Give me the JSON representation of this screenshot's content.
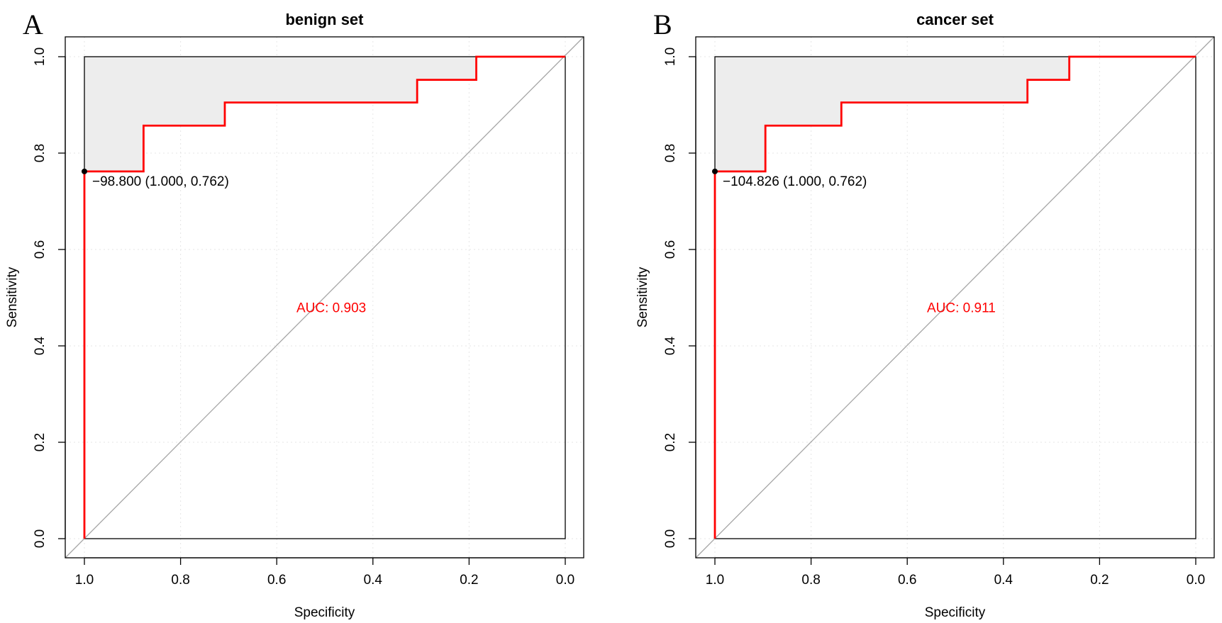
{
  "chart_data": [
    {
      "type": "line",
      "panel_label": "A",
      "title": "benign set",
      "xlabel": "Specificity",
      "ylabel": "Sensitivity",
      "xlim": [
        1.0,
        0.0
      ],
      "ylim": [
        0.0,
        1.0
      ],
      "x_reversed": true,
      "xticks": [
        "1.0",
        "0.8",
        "0.6",
        "0.4",
        "0.2",
        "0.0"
      ],
      "yticks": [
        "0.0",
        "0.2",
        "0.4",
        "0.6",
        "0.8",
        "1.0"
      ],
      "grid": true,
      "series": [
        {
          "color": "#ff0000",
          "x": [
            1.0,
            1.0,
            0.877,
            0.877,
            0.708,
            0.708,
            0.308,
            0.308,
            0.185,
            0.185,
            0.0
          ],
          "y": [
            0.0,
            0.762,
            0.762,
            0.857,
            0.857,
            0.905,
            0.905,
            0.952,
            0.952,
            1.0,
            1.0
          ]
        }
      ],
      "threshold": {
        "label": "−98.800 (1.000, 0.762)",
        "x": 1.0,
        "y": 0.762
      },
      "auc_label": "AUC: 0.903",
      "auc_label_pos": [
        0.5,
        0.48
      ]
    },
    {
      "type": "line",
      "panel_label": "B",
      "title": "cancer set",
      "xlabel": "Specificity",
      "ylabel": "Sensitivity",
      "xlim": [
        1.0,
        0.0
      ],
      "ylim": [
        0.0,
        1.0
      ],
      "x_reversed": true,
      "xticks": [
        "1.0",
        "0.8",
        "0.6",
        "0.4",
        "0.2",
        "0.0"
      ],
      "yticks": [
        "0.0",
        "0.2",
        "0.4",
        "0.6",
        "0.8",
        "1.0"
      ],
      "grid": true,
      "series": [
        {
          "color": "#ff0000",
          "x": [
            1.0,
            1.0,
            0.895,
            0.895,
            0.737,
            0.737,
            0.35,
            0.35,
            0.263,
            0.263,
            0.0
          ],
          "y": [
            0.0,
            0.762,
            0.762,
            0.857,
            0.857,
            0.905,
            0.905,
            0.952,
            0.952,
            1.0,
            1.0
          ]
        }
      ],
      "threshold": {
        "label": "−104.826 (1.000, 0.762)",
        "x": 1.0,
        "y": 0.762
      },
      "auc_label": "AUC: 0.911",
      "auc_label_pos": [
        0.5,
        0.48
      ]
    }
  ]
}
